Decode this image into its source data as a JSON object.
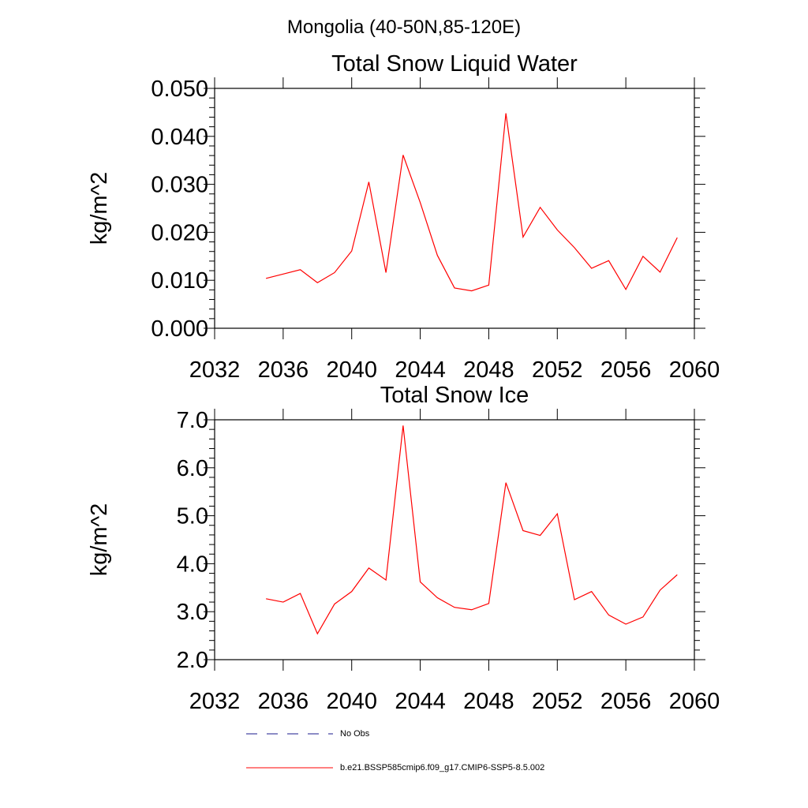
{
  "figure_title": "Mongolia (40-50N,85-120E)",
  "colors": {
    "model": "#ff0000",
    "obs": "#1a1a8c",
    "axis": "#000000"
  },
  "legend": {
    "entries": [
      {
        "label": "No Obs",
        "style": "dashed",
        "color": "#1a1a8c"
      },
      {
        "label": "b.e21.BSSP585cmip6.f09_g17.CMIP6-SSP5-8.5.002",
        "style": "solid",
        "color": "#ff0000"
      }
    ]
  },
  "chart_data": [
    {
      "type": "line",
      "title": "Total Snow Liquid Water",
      "xlabel": "",
      "ylabel": "kg/m^2",
      "xlim": [
        2032,
        2060
      ],
      "ylim": [
        0,
        0.05
      ],
      "x_ticks": [
        2032,
        2036,
        2040,
        2044,
        2048,
        2052,
        2056,
        2060
      ],
      "x_tick_labels": [
        "2032",
        "2036",
        "2040",
        "2044",
        "2048",
        "2052",
        "2056",
        "2060"
      ],
      "y_ticks": [
        0,
        0.01,
        0.02,
        0.03,
        0.04,
        0.05
      ],
      "y_tick_labels": [
        "0.000",
        "0.010",
        "0.020",
        "0.030",
        "0.040",
        "0.050"
      ],
      "grid": false,
      "series": [
        {
          "name": "b.e21.BSSP585cmip6.f09_g17.CMIP6-SSP5-8.5.002",
          "color": "#ff0000",
          "x": [
            2035,
            2036,
            2037,
            2038,
            2039,
            2040,
            2041,
            2042,
            2043,
            2044,
            2045,
            2046,
            2047,
            2048,
            2049,
            2050,
            2051,
            2052,
            2053,
            2054,
            2055,
            2056,
            2057,
            2058,
            2059
          ],
          "values": [
            0.0104,
            0.0113,
            0.0122,
            0.0095,
            0.0116,
            0.0161,
            0.0305,
            0.0116,
            0.0361,
            0.0262,
            0.0152,
            0.0084,
            0.0078,
            0.009,
            0.0448,
            0.019,
            0.0252,
            0.0205,
            0.0168,
            0.0125,
            0.0141,
            0.0081,
            0.015,
            0.0117,
            0.0189
          ]
        }
      ]
    },
    {
      "type": "line",
      "title": "Total Snow Ice",
      "xlabel": "",
      "ylabel": "kg/m^2",
      "xlim": [
        2032,
        2060
      ],
      "ylim": [
        2.0,
        7.0
      ],
      "x_ticks": [
        2032,
        2036,
        2040,
        2044,
        2048,
        2052,
        2056,
        2060
      ],
      "x_tick_labels": [
        "2032",
        "2036",
        "2040",
        "2044",
        "2048",
        "2052",
        "2056",
        "2060"
      ],
      "y_ticks": [
        2,
        3,
        4,
        5,
        6,
        7
      ],
      "y_tick_labels": [
        "2.0",
        "3.0",
        "4.0",
        "5.0",
        "6.0",
        "7.0"
      ],
      "grid": false,
      "series": [
        {
          "name": "b.e21.BSSP585cmip6.f09_g17.CMIP6-SSP5-8.5.002",
          "color": "#ff0000",
          "x": [
            2035,
            2036,
            2037,
            2038,
            2039,
            2040,
            2041,
            2042,
            2043,
            2044,
            2045,
            2046,
            2047,
            2048,
            2049,
            2050,
            2051,
            2052,
            2053,
            2054,
            2055,
            2056,
            2057,
            2058,
            2059
          ],
          "values": [
            3.27,
            3.2,
            3.38,
            2.54,
            3.16,
            3.42,
            3.91,
            3.66,
            6.88,
            3.62,
            3.29,
            3.09,
            3.04,
            3.17,
            5.69,
            4.69,
            4.59,
            5.04,
            3.25,
            3.42,
            2.93,
            2.74,
            2.89,
            3.45,
            3.77
          ]
        }
      ]
    }
  ]
}
